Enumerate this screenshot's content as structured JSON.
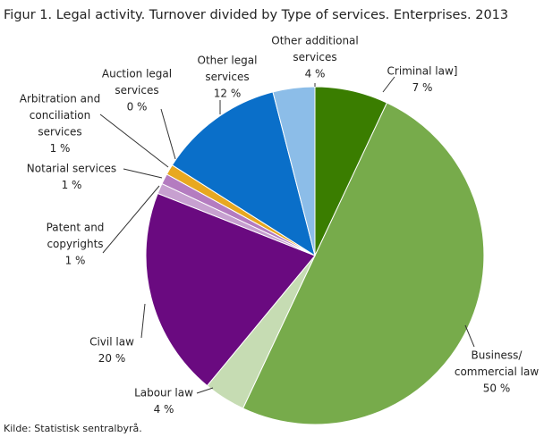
{
  "chart_data": {
    "type": "pie",
    "title": "Figur 1. Legal activity. Turnover divided by Type of services. Enterprises. 2013",
    "source": "Kilde: Statistisk sentralbyrå.",
    "categories": [
      [
        "Criminal law]"
      ],
      [
        "Business/",
        "commercial law"
      ],
      [
        "Labour law"
      ],
      [
        "Civil law"
      ],
      [
        "Patent and",
        "copyrights"
      ],
      [
        "Notarial services"
      ],
      [
        "Arbitration and",
        "conciliation",
        "services"
      ],
      [
        "Auction legal",
        "services"
      ],
      [
        "Other legal",
        "services"
      ],
      [
        "Other additional",
        "services"
      ]
    ],
    "values": [
      7,
      50,
      4,
      20,
      1,
      1,
      1,
      0,
      12,
      4
    ],
    "value_labels": [
      "7 %",
      "50 %",
      "4 %",
      "20 %",
      "1 %",
      "1 %",
      "1 %",
      "0 %",
      "12 %",
      "4 %"
    ],
    "colors": [
      "#3a7d00",
      "#77ab4b",
      "#c6dcb3",
      "#6a0a80",
      "#c7a0d0",
      "#b47cc0",
      "#e8a820",
      "#f2d34a",
      "#0a6fc9",
      "#8cbde8"
    ]
  }
}
